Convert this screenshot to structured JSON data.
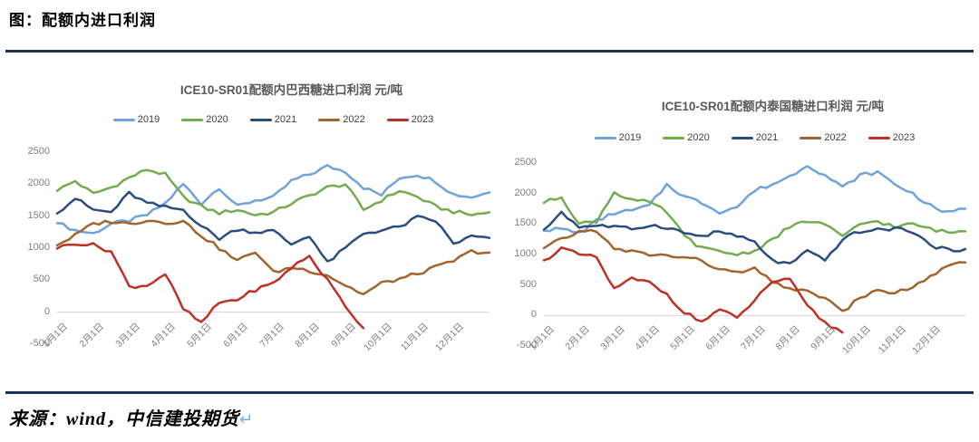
{
  "header": {
    "title": "图：配额内进口利润"
  },
  "footer": {
    "source": "来源：wind，中信建投期货",
    "return_mark": "↵"
  },
  "style": {
    "rule_color": "#1F3157",
    "chart_title_color": "#595959",
    "axis_text_color": "#7F7F7F",
    "zero_axis_color": "#D6D6D6"
  },
  "chart_data": [
    {
      "type": "line",
      "title": "ICE10-SR01配额内巴西糖进口利润 元/吨",
      "ylabel": "元/吨",
      "ylim": [
        -500,
        2500
      ],
      "yticks": [
        2500,
        2000,
        1500,
        1000,
        500,
        0,
        -500
      ],
      "x_tick_labels": [
        "1月1日",
        "2月1日",
        "3月1日",
        "4月1日",
        "5月1日",
        "6月1日",
        "7月1日",
        "8月1日",
        "9月1日",
        "10月1日",
        "11月1日",
        "12月1日"
      ],
      "legend_position": "top",
      "grid": "zero-axis-only",
      "x_unit": "month-of-year",
      "series": [
        {
          "name": "2019",
          "color": "#6FA3DC",
          "t_start": 0,
          "t_step": 0.5,
          "values": [
            1400,
            1280,
            1230,
            1380,
            1430,
            1520,
            1700,
            2000,
            1700,
            1950,
            1650,
            1750,
            1790,
            2050,
            2150,
            2280,
            2200,
            1950,
            1830,
            2100,
            2150,
            2050,
            1840,
            1800,
            1870
          ]
        },
        {
          "name": "2020",
          "color": "#73AC4E",
          "t_start": 0,
          "t_step": 0.5,
          "values": [
            1900,
            2050,
            1850,
            1950,
            2100,
            2230,
            2150,
            1800,
            1650,
            1550,
            1600,
            1520,
            1560,
            1700,
            1820,
            1950,
            2000,
            1600,
            1750,
            1900,
            1800,
            1650,
            1570,
            1520,
            1560
          ]
        },
        {
          "name": "2021",
          "color": "#2B4C7E",
          "t_start": 0,
          "t_step": 0.5,
          "values": [
            1550,
            1780,
            1600,
            1560,
            1860,
            1700,
            1640,
            1600,
            1350,
            1150,
            1300,
            1250,
            1270,
            1060,
            1200,
            770,
            1000,
            1230,
            1280,
            1330,
            1480,
            1430,
            1070,
            1180,
            1160
          ]
        },
        {
          "name": "2022",
          "color": "#A2632E",
          "t_start": 0,
          "t_step": 0.5,
          "values": [
            1050,
            1200,
            1380,
            1420,
            1380,
            1440,
            1400,
            1420,
            1200,
            1000,
            800,
            950,
            620,
            700,
            650,
            580,
            420,
            280,
            450,
            520,
            600,
            700,
            800,
            950,
            930
          ]
        },
        {
          "name": "2023",
          "color": "#BC3026",
          "t_start": 0,
          "t_step": 0.5,
          "values": [
            1000,
            1080,
            1050,
            950,
            400,
            420,
            600,
            50,
            -170,
            150,
            200,
            350,
            450,
            700,
            875,
            500,
            100,
            -250
          ]
        }
      ]
    },
    {
      "type": "line",
      "title": "ICE10-SR01配额内泰国糖进口利润 元/吨",
      "ylabel": "元/吨",
      "ylim": [
        -500,
        2500
      ],
      "yticks": [
        2500,
        2000,
        1500,
        1000,
        500,
        0,
        -500
      ],
      "x_tick_labels": [
        "1月1日",
        "2月1日",
        "3月1日",
        "4月1日",
        "5月1日",
        "6月1日",
        "7月1日",
        "8月1日",
        "9月1日",
        "10月1日",
        "11月1日",
        "12月1日"
      ],
      "legend_position": "top",
      "grid": "zero-axis-only",
      "x_unit": "month-of-year",
      "series": [
        {
          "name": "2019",
          "color": "#6FA3DC",
          "t_start": 0,
          "t_step": 0.5,
          "values": [
            1400,
            1420,
            1350,
            1550,
            1680,
            1720,
            1800,
            2150,
            1950,
            1850,
            1700,
            1780,
            2050,
            2150,
            2280,
            2470,
            2300,
            2100,
            2300,
            2350,
            2150,
            2000,
            1800,
            1680,
            1750
          ]
        },
        {
          "name": "2020",
          "color": "#73AC4E",
          "t_start": 0,
          "t_step": 0.5,
          "values": [
            1850,
            1950,
            1500,
            1550,
            2020,
            1900,
            1850,
            1700,
            1300,
            1100,
            1050,
            1000,
            1060,
            1250,
            1450,
            1550,
            1500,
            1280,
            1500,
            1550,
            1450,
            1500,
            1420,
            1360,
            1380
          ]
        },
        {
          "name": "2021",
          "color": "#2B4C7E",
          "t_start": 0,
          "t_step": 0.5,
          "values": [
            1400,
            1700,
            1450,
            1480,
            1450,
            1420,
            1480,
            1450,
            1350,
            1300,
            1380,
            1300,
            1200,
            900,
            840,
            1050,
            900,
            1250,
            1380,
            1400,
            1430,
            1380,
            1150,
            1070,
            1090
          ]
        },
        {
          "name": "2022",
          "color": "#A2632E",
          "t_start": 0,
          "t_step": 0.5,
          "values": [
            1100,
            1250,
            1370,
            1400,
            1080,
            1050,
            1000,
            980,
            950,
            900,
            750,
            700,
            760,
            550,
            450,
            380,
            300,
            50,
            300,
            400,
            380,
            450,
            650,
            800,
            870
          ]
        },
        {
          "name": "2023",
          "color": "#BC3026",
          "t_start": 0,
          "t_step": 0.5,
          "values": [
            900,
            1100,
            1000,
            950,
            430,
            600,
            540,
            350,
            50,
            -100,
            100,
            -50,
            250,
            560,
            580,
            150,
            -120,
            -280
          ]
        }
      ]
    }
  ]
}
